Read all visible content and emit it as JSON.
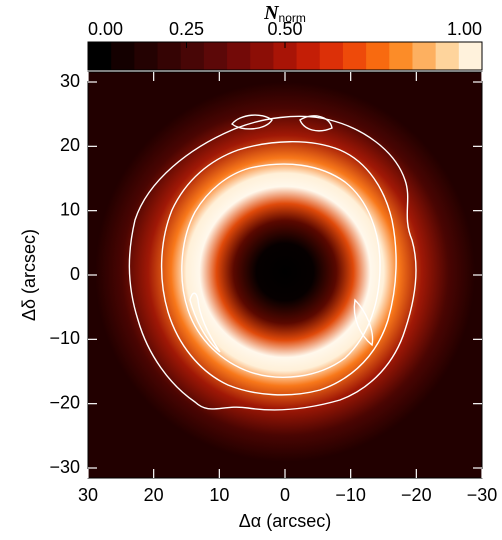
{
  "chart_data": {
    "type": "image",
    "colorbar": {
      "label": "N",
      "label_subscript": "norm",
      "clim": [
        0,
        1
      ],
      "ticks": [
        {
          "value": 0,
          "label": "0.00"
        },
        {
          "value": 0.25,
          "label": "0.25"
        },
        {
          "value": 0.5,
          "label": "0.50"
        },
        {
          "value": 1,
          "label": "1.00"
        }
      ],
      "colors": [
        "#000000",
        "#140000",
        "#240202",
        "#350404",
        "#480606",
        "#5c0808",
        "#730a08",
        "#8c0e06",
        "#a81406",
        "#c41e06",
        "#dc3008",
        "#ee4a0a",
        "#f86a10",
        "#fc8c28",
        "#fdb060",
        "#fed49c",
        "#fff2dc"
      ]
    },
    "xlabel": "Δα (arcsec)",
    "ylabel": "Δδ (arcsec)",
    "xlim": [
      30,
      -30
    ],
    "ylim": [
      -30,
      30
    ],
    "xticks": [
      30,
      20,
      10,
      0,
      {
        "value": -10,
        "label": "−10"
      },
      {
        "value": -20,
        "label": "−20"
      },
      {
        "value": -30,
        "label": "−30"
      }
    ],
    "yticks": [
      {
        "value": -30,
        "label": "−30"
      },
      {
        "value": -20,
        "label": "−20"
      },
      {
        "value": -10,
        "label": "−10"
      },
      0,
      10,
      20,
      30
    ]
  }
}
